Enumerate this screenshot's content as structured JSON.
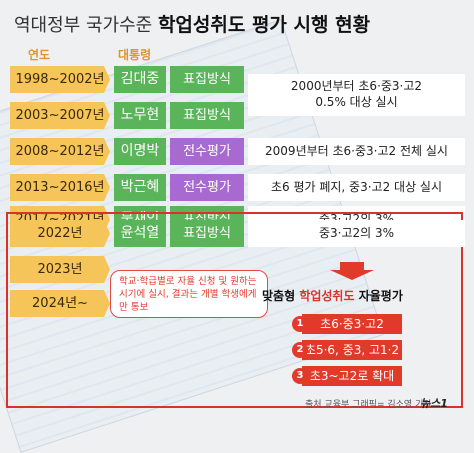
{
  "title": {
    "prefix": "역대정부 국가수준 ",
    "main": "학업성취도 평가 시행 현황"
  },
  "headers": {
    "period": "연도",
    "president": "대통령"
  },
  "rows": [
    {
      "period": "1998~2002년",
      "president": "김대중",
      "method": "표집방식",
      "desc": "2000년부터 초6·중3·고2\n0.5% 대상 실시"
    },
    {
      "period": "2003~2007년",
      "president": "노무현",
      "method": "표집방식",
      "desc": ""
    },
    {
      "period": "2008~2012년",
      "president": "이명박",
      "method": "전수평가",
      "desc": "2009년부터 초6·중3·고2 전체 실시"
    },
    {
      "period": "2013~2016년",
      "president": "박근혜",
      "method": "전수평가",
      "desc": "초6 평가 폐지, 중3·고2 대상 실시"
    },
    {
      "period": "2017~2021년",
      "president": "문재인",
      "method": "표집방식",
      "desc": "중3·고2의 3%"
    },
    {
      "period": "2022년",
      "president": "윤석열",
      "method": "표집방식",
      "desc": "중3·고2의 3%"
    },
    {
      "period": "2023년",
      "president": "",
      "method": "",
      "desc": ""
    },
    {
      "period": "2024년~",
      "president": "",
      "method": "",
      "desc": ""
    }
  ],
  "note": "학교·학급별로 자율 신청 및 원하는 시기에 실시, 결과는 개별 학생에게만 통보",
  "feature": {
    "prefix": "맞춤형 ",
    "main": "학업성취도",
    "suffix": " 자율평가"
  },
  "steps": [
    {
      "num": "1",
      "label": "초6·중3·고2"
    },
    {
      "num": "2",
      "label": "초5·6, 중3, 고1·2"
    },
    {
      "num": "3",
      "label": "초3~고2로 확대"
    }
  ],
  "source": "출처 교육부 그래픽= 김소영 기자",
  "logo": "뉴스1",
  "colors": {
    "period": "#f5c55a",
    "president": "#5ab55a",
    "sample": "#5ab55a",
    "census": "#a86ad0",
    "accent": "#d9322b"
  }
}
